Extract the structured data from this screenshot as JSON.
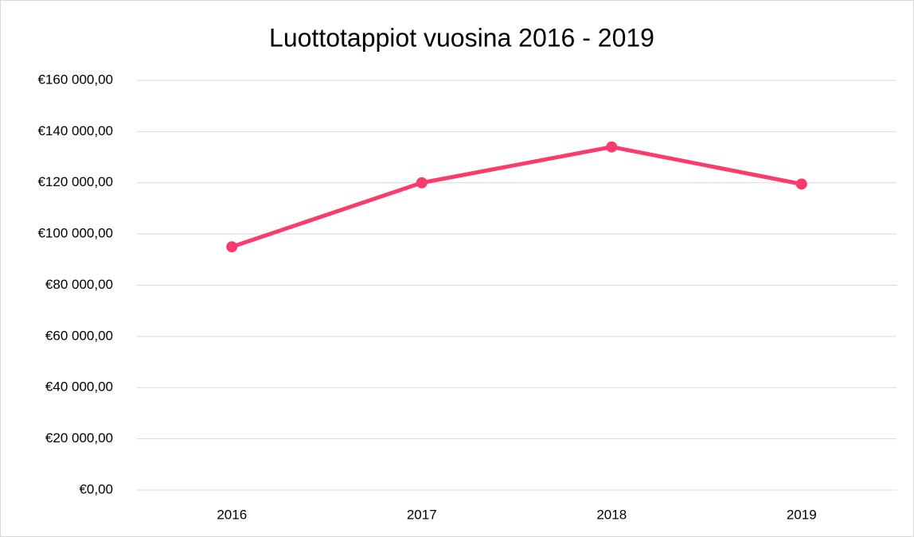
{
  "chart_data": {
    "type": "line",
    "title": "Luottotappiot vuosina 2016 - 2019",
    "categories": [
      "2016",
      "2017",
      "2018",
      "2019"
    ],
    "series": [
      {
        "name": "Luottotappiot",
        "color": "#fa3b6c",
        "values": [
          95000,
          120000,
          134000,
          119500
        ]
      }
    ],
    "ylim": [
      0,
      160000
    ],
    "yticks": [
      {
        "value": 0,
        "label": "€0,00"
      },
      {
        "value": 20000,
        "label": "€20 000,00"
      },
      {
        "value": 40000,
        "label": "€40 000,00"
      },
      {
        "value": 60000,
        "label": "€60 000,00"
      },
      {
        "value": 80000,
        "label": "€80 000,00"
      },
      {
        "value": 100000,
        "label": "€100 000,00"
      },
      {
        "value": 120000,
        "label": "€120 000,00"
      },
      {
        "value": 140000,
        "label": "€140 000,00"
      },
      {
        "value": 160000,
        "label": "€160 000,00"
      }
    ],
    "grid": true
  }
}
